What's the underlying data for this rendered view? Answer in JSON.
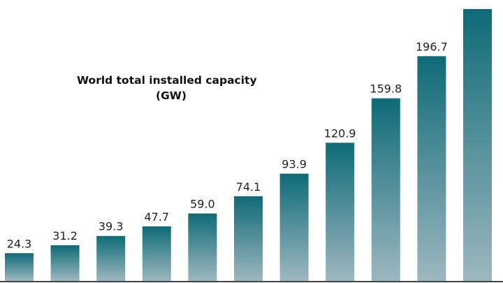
{
  "chart_data": {
    "type": "bar",
    "title_line1": "World total installed capacity",
    "title_line2": "(GW)",
    "xlabel": "",
    "ylabel": "",
    "grid": false,
    "values": [
      24.3,
      31.2,
      39.3,
      47.7,
      59.0,
      74.1,
      93.9,
      120.9,
      159.8,
      196.7,
      238.0
    ],
    "labels": [
      "24.3",
      "31.2",
      "39.3",
      "47.7",
      "59.0",
      "74.1",
      "93.9",
      "120.9",
      "159.8",
      "196.7",
      ""
    ],
    "colors": {
      "bar_top": "#0e6b77",
      "bar_bottom": "#9db7bf",
      "baseline": "#444444"
    }
  }
}
